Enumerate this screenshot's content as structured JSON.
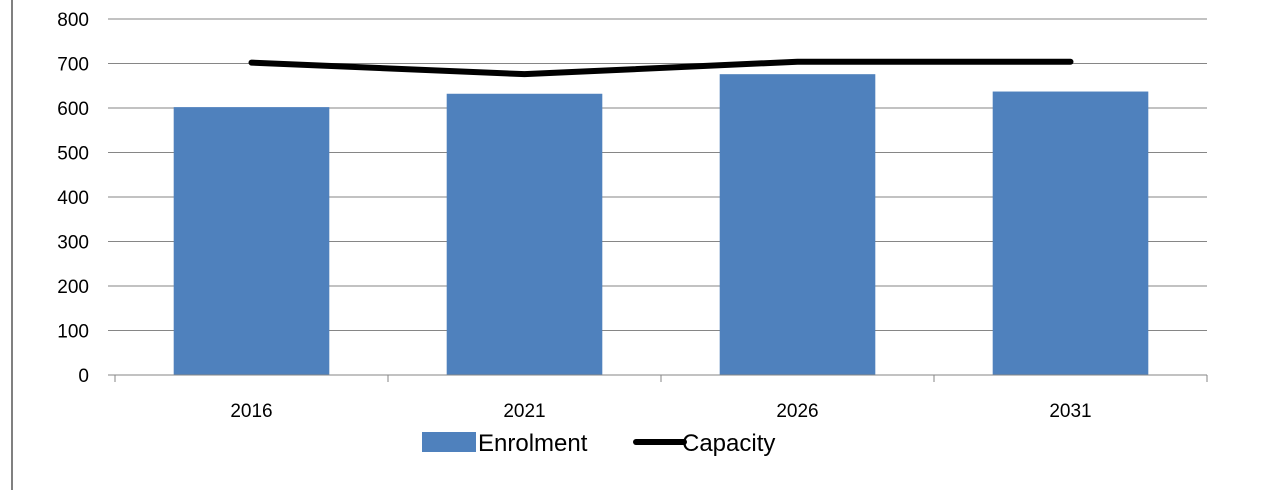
{
  "colors": {
    "enrolment_bar": "#4F81BD",
    "capacity_line": "#000000",
    "gridline": "#868686",
    "axis": "#868686",
    "border": "#808080"
  },
  "chart_data": {
    "type": "bar",
    "title": "",
    "xlabel": "",
    "ylabel": "",
    "categories": [
      "2016",
      "2021",
      "2026",
      "2031"
    ],
    "ylim": [
      0,
      800
    ],
    "yticks": [
      0,
      100,
      200,
      300,
      400,
      500,
      600,
      700,
      800
    ],
    "grid": true,
    "legend_position": "bottom",
    "series": [
      {
        "name": "Enrolment",
        "type": "bar",
        "values": [
          602,
          632,
          676,
          637
        ]
      },
      {
        "name": "Capacity",
        "type": "line",
        "values": [
          702,
          676,
          704,
          704
        ]
      }
    ]
  }
}
